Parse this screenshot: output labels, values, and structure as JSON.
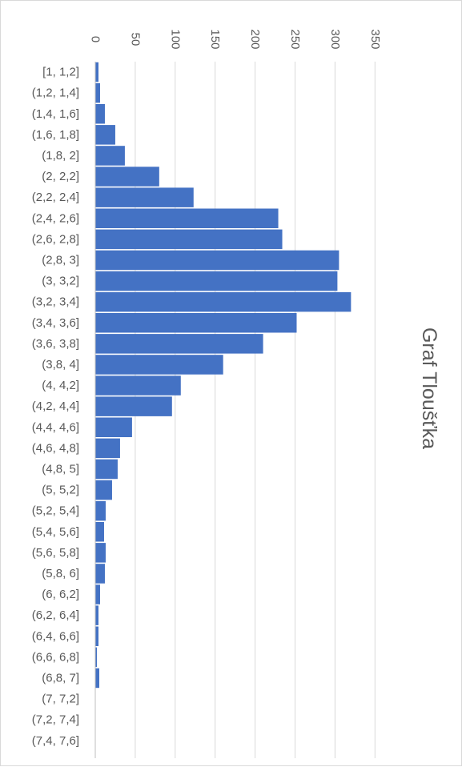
{
  "chart_data": {
    "type": "bar",
    "orientation": "horizontal",
    "title": "Graf Tloušťka",
    "categories": [
      "[1, 1,2]",
      "(1,2, 1,4]",
      "(1,4, 1,6]",
      "(1,6, 1,8]",
      "(1,8, 2]",
      "(2, 2,2]",
      "(2,2, 2,4]",
      "(2,4, 2,6]",
      "(2,6, 2,8]",
      "(2,8, 3]",
      "(3, 3,2]",
      "(3,2, 3,4]",
      "(3,4, 3,6]",
      "(3,6, 3,8]",
      "(3,8, 4]",
      "(4, 4,2]",
      "(4,2, 4,4]",
      "(4,4, 4,6]",
      "(4,6, 4,8]",
      "(4,8, 5]",
      "(5, 5,2]",
      "(5,2, 5,4]",
      "(5,4, 5,6]",
      "(5,6, 5,8]",
      "(5,8, 6]",
      "(6, 6,2]",
      "(6,2, 6,4]",
      "(6,4, 6,6]",
      "(6,6, 6,8]",
      "(6,8, 7]",
      "(7, 7,2]",
      "(7,2, 7,4]",
      "(7,4, 7,6]"
    ],
    "values": [
      4,
      6,
      12,
      25,
      37,
      80,
      123,
      229,
      234,
      305,
      303,
      320,
      252,
      210,
      160,
      107,
      96,
      46,
      31,
      28,
      21,
      13,
      11,
      13,
      12,
      6,
      4,
      4,
      2,
      5,
      0,
      0,
      0
    ],
    "axis_ticks": [
      "0",
      "50",
      "100",
      "150",
      "200",
      "250",
      "300",
      "350"
    ],
    "xlim": [
      0,
      350
    ],
    "grid": true,
    "legend": "none",
    "bar_color": "#4472c4"
  }
}
